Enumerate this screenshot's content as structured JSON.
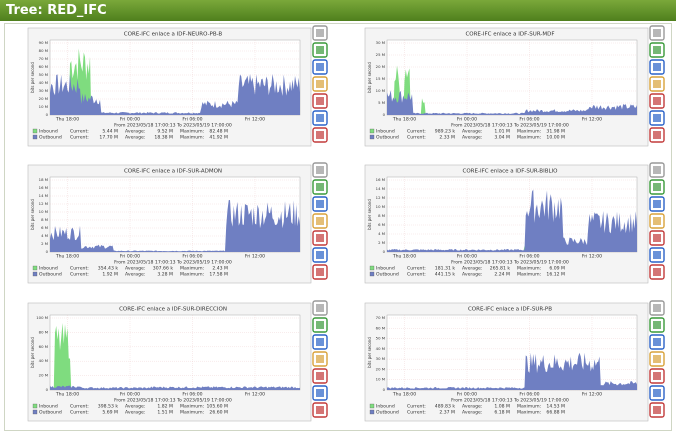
{
  "header": {
    "title": "Tree: RED_IFC"
  },
  "legend_labels": [
    "Current:",
    "Average:",
    "Maximum:"
  ],
  "graphs": [
    {
      "title": "CORE-IFC enlace a IDF-NEURO-PB-B",
      "y_axis_label": "bits per second",
      "yticks": [
        "90 M",
        "80 M",
        "70 M",
        "60 M",
        "50 M",
        "40 M",
        "30 M",
        "20 M",
        "10 M",
        "0"
      ],
      "x_labels": [
        "Thu 18:00",
        "Fri 00:00",
        "Fri 06:00",
        "Fri 12:00"
      ],
      "date_range": "From 2023/05/18 17:00:13 To 2023/05/19 17:00:00",
      "legend": [
        {
          "name": "Inbound",
          "current": "5.44 M",
          "average": "9.52 M",
          "maximum": "82.48 M"
        },
        {
          "name": "Outbound",
          "current": "17.70 M",
          "average": "18.38 M",
          "maximum": "41.92 M"
        }
      ]
    },
    {
      "title": "CORE-IFC enlace a IDF-SUR-MDF",
      "y_axis_label": "bits per second",
      "yticks": [
        "30 M",
        "25 M",
        "20 M",
        "15 M",
        "10 M",
        "5 M",
        "0"
      ],
      "x_labels": [
        "Thu 18:00",
        "Fri 00:00",
        "Fri 06:00",
        "Fri 12:00"
      ],
      "date_range": "From 2023/05/18 17:00:13 To 2023/05/19 17:00:00",
      "legend": [
        {
          "name": "Inbound",
          "current": "989.23 k",
          "average": "1.01 M",
          "maximum": "31.98 M"
        },
        {
          "name": "Outbound",
          "current": "2.33 M",
          "average": "3.04 M",
          "maximum": "10.00 M"
        }
      ]
    },
    {
      "title": "CORE-IFC enlace a IDF-SUR-ADMON",
      "y_axis_label": "bits per second",
      "yticks": [
        "18 M",
        "16 M",
        "14 M",
        "12 M",
        "10 M",
        "8 M",
        "6 M",
        "4 M",
        "2 M",
        "0"
      ],
      "x_labels": [
        "Thu 18:00",
        "Fri 00:00",
        "Fri 06:00",
        "Fri 12:00"
      ],
      "date_range": "From 2023/05/18 17:00:13 To 2023/05/19 17:00:00",
      "legend": [
        {
          "name": "Inbound",
          "current": "354.43 k",
          "average": "307.66 k",
          "maximum": "2.43 M"
        },
        {
          "name": "Outbound",
          "current": "1.92 M",
          "average": "3.28 M",
          "maximum": "17.58 M"
        }
      ]
    },
    {
      "title": "CORE-IFC enlace a IDF-SUR-BIBLIO",
      "y_axis_label": "bits per second",
      "yticks": [
        "16 M",
        "14 M",
        "12 M",
        "10 M",
        "8 M",
        "6 M",
        "4 M",
        "2 M",
        "0"
      ],
      "x_labels": [
        "Thu 18:00",
        "Fri 00:00",
        "Fri 06:00",
        "Fri 12:00"
      ],
      "date_range": "From 2023/05/18 17:00:13 To 2023/05/19 17:00:00",
      "legend": [
        {
          "name": "Inbound",
          "current": "181.31 k",
          "average": "265.81 k",
          "maximum": "6.09 M"
        },
        {
          "name": "Outbound",
          "current": "441.15 k",
          "average": "2.24 M",
          "maximum": "16.12 M"
        }
      ]
    },
    {
      "title": "CORE-IFC enlace a IDF-SUR-DIRECCION",
      "y_axis_label": "bits per second",
      "yticks": [
        "100 M",
        "80 M",
        "60 M",
        "40 M",
        "20 M",
        "0"
      ],
      "x_labels": [
        "Thu 18:00",
        "Fri 00:00",
        "Fri 06:00",
        "Fri 12:00"
      ],
      "date_range": "From 2023/05/18 17:00:13 To 2023/05/19 17:00:00",
      "legend": [
        {
          "name": "Inbound",
          "current": "398.53 k",
          "average": "1.82 M",
          "maximum": "105.60 M"
        },
        {
          "name": "Outbound",
          "current": "5.69 M",
          "average": "1.51 M",
          "maximum": "26.60 M"
        }
      ]
    },
    {
      "title": "CORE-IFC enlace a IDF-SUR-PB",
      "y_axis_label": "bits per second",
      "yticks": [
        "70 M",
        "60 M",
        "50 M",
        "40 M",
        "30 M",
        "20 M",
        "10 M",
        "0"
      ],
      "x_labels": [
        "Thu 18:00",
        "Fri 00:00",
        "Fri 06:00",
        "Fri 12:00"
      ],
      "date_range": "From 2023/05/18 17:00:13 To 2023/05/19 17:00:00",
      "legend": [
        {
          "name": "Inbound",
          "current": "489.83 k",
          "average": "1.08 M",
          "maximum": "14.53 M"
        },
        {
          "name": "Outbound",
          "current": "2.37 M",
          "average": "6.18 M",
          "maximum": "66.88 M"
        }
      ]
    }
  ]
}
